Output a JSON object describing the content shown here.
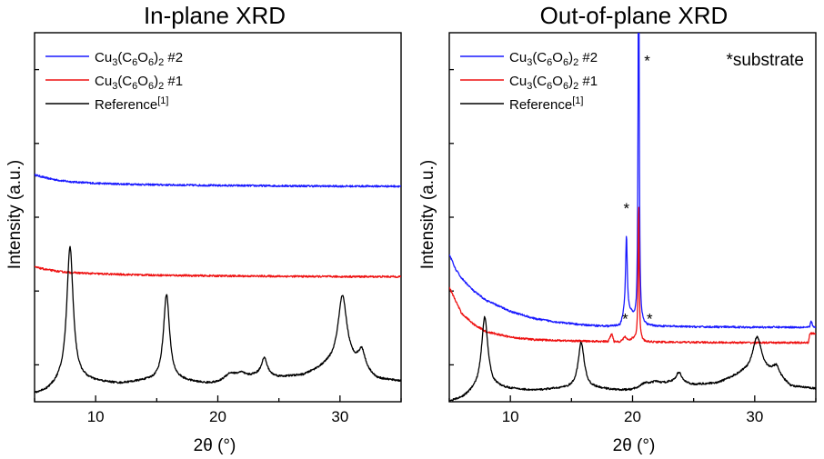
{
  "figure": {
    "colors": {
      "blue": "#1a1aff",
      "red": "#ee1111",
      "black": "#000000"
    }
  },
  "chart_data": [
    {
      "type": "line",
      "title": "In-plane XRD",
      "xlabel": "2θ (°)",
      "ylabel": "Intensity (a.u.)",
      "xlim": [
        5,
        35
      ],
      "ylim": [
        0,
        10
      ],
      "xticks": [
        10,
        20,
        30
      ],
      "y_tick_labels_shown": false,
      "legend_position": "top-left",
      "legend": [
        {
          "base": "Cu",
          "sub1": "3",
          "mid1": "(C",
          "sub2": "6",
          "mid2": "O",
          "sub3": "6",
          "mid3": ")",
          "sub4": "2",
          "tail": " #2",
          "sup": "",
          "color": "#1a1aff"
        },
        {
          "base": "Cu",
          "sub1": "3",
          "mid1": "(C",
          "sub2": "6",
          "mid2": "O",
          "sub3": "6",
          "mid3": ")",
          "sub4": "2",
          "tail": " #1",
          "sup": "",
          "color": "#ee1111"
        },
        {
          "base": "Reference",
          "sub1": "",
          "mid1": "",
          "sub2": "",
          "mid2": "",
          "sub3": "",
          "mid3": "",
          "sub4": "",
          "tail": "",
          "sup": "[1]",
          "color": "#000000"
        }
      ],
      "series": [
        {
          "name": "Cu3(C6O6)2 #2",
          "color": "#1a1aff",
          "points": [
            [
              5,
              6.15
            ],
            [
              6,
              6.06
            ],
            [
              7,
              6.0
            ],
            [
              8,
              5.96
            ],
            [
              10,
              5.92
            ],
            [
              12,
              5.9
            ],
            [
              15,
              5.88
            ],
            [
              20,
              5.86
            ],
            [
              25,
              5.85
            ],
            [
              30,
              5.84
            ],
            [
              35,
              5.84
            ]
          ],
          "peaks": []
        },
        {
          "name": "Cu3(C6O6)2 #1",
          "color": "#ee1111",
          "points": [
            [
              5,
              3.65
            ],
            [
              6,
              3.58
            ],
            [
              7,
              3.53
            ],
            [
              8,
              3.5
            ],
            [
              10,
              3.47
            ],
            [
              12,
              3.45
            ],
            [
              15,
              3.43
            ],
            [
              20,
              3.41
            ],
            [
              25,
              3.4
            ],
            [
              30,
              3.39
            ],
            [
              35,
              3.39
            ]
          ],
          "peaks": []
        },
        {
          "name": "Reference[1]",
          "color": "#000000",
          "points": [
            [
              5,
              0.2
            ],
            [
              6,
              0.28
            ],
            [
              7,
              0.45
            ],
            [
              9,
              0.55
            ],
            [
              12,
              0.48
            ],
            [
              14,
              0.55
            ],
            [
              17,
              0.55
            ],
            [
              19,
              0.48
            ],
            [
              20,
              0.48
            ],
            [
              23,
              0.68
            ],
            [
              25,
              0.65
            ],
            [
              27,
              0.7
            ],
            [
              29,
              0.95
            ],
            [
              31.5,
              0.95
            ],
            [
              33,
              0.6
            ],
            [
              35,
              0.55
            ]
          ],
          "peaks": [
            [
              7.9,
              3.7,
              0.32
            ],
            [
              15.8,
              2.35,
              0.3
            ],
            [
              21.0,
              0.2,
              0.6
            ],
            [
              21.9,
              0.12,
              0.4
            ],
            [
              23.8,
              0.5,
              0.3
            ],
            [
              30.2,
              1.9,
              0.45
            ],
            [
              31.8,
              0.45,
              0.3
            ]
          ]
        }
      ]
    },
    {
      "type": "line",
      "title": "Out-of-plane XRD",
      "xlabel": "2θ (°)",
      "ylabel": "Intensity (a.u.)",
      "xlim": [
        5,
        35
      ],
      "ylim": [
        0,
        10
      ],
      "xticks": [
        10,
        20,
        30
      ],
      "y_tick_labels_shown": false,
      "legend_position": "top-left",
      "annotation_text": "*substrate",
      "legend": [
        {
          "base": "Cu",
          "sub1": "3",
          "mid1": "(C",
          "sub2": "6",
          "mid2": "O",
          "sub3": "6",
          "mid3": ")",
          "sub4": "2",
          "tail": " #2",
          "sup": "",
          "color": "#1a1aff"
        },
        {
          "base": "Cu",
          "sub1": "3",
          "mid1": "(C",
          "sub2": "6",
          "mid2": "O",
          "sub3": "6",
          "mid3": ")",
          "sub4": "2",
          "tail": " #1",
          "sup": "",
          "color": "#ee1111"
        },
        {
          "base": "Reference",
          "sub1": "",
          "mid1": "",
          "sub2": "",
          "mid2": "",
          "sub3": "",
          "mid3": "",
          "sub4": "",
          "tail": "",
          "sup": "[1]",
          "color": "#000000"
        }
      ],
      "asterisks": [
        {
          "label": "*",
          "x": 19.5,
          "y": 5.1
        },
        {
          "label": "*",
          "x": 21.2,
          "y": 9.1
        },
        {
          "label": "*",
          "x": 19.4,
          "y": 2.1
        },
        {
          "label": "*",
          "x": 21.4,
          "y": 2.1
        }
      ],
      "series": [
        {
          "name": "Cu3(C6O6)2 #2",
          "color": "#1a1aff",
          "points": [
            [
              5,
              4.0
            ],
            [
              5.5,
              3.6
            ],
            [
              6,
              3.35
            ],
            [
              7,
              3.0
            ],
            [
              8,
              2.75
            ],
            [
              10,
              2.45
            ],
            [
              12,
              2.25
            ],
            [
              14,
              2.15
            ],
            [
              16,
              2.08
            ],
            [
              18,
              2.04
            ],
            [
              19,
              2.05
            ],
            [
              19.4,
              2.4
            ],
            [
              19.9,
              2.35
            ],
            [
              20.3,
              2.1
            ],
            [
              21,
              2.05
            ],
            [
              25,
              2.03
            ],
            [
              30,
              2.02
            ],
            [
              34.5,
              2.02
            ],
            [
              34.6,
              2.2
            ],
            [
              34.8,
              2.02
            ],
            [
              35,
              2.02
            ]
          ],
          "peaks": [
            [
              19.5,
              2.1,
              0.08
            ],
            [
              20.5,
              12.0,
              0.05
            ]
          ]
        },
        {
          "name": "Cu3(C6O6)2 #1",
          "color": "#ee1111",
          "points": [
            [
              5,
              3.1
            ],
            [
              5.5,
              2.75
            ],
            [
              6,
              2.4
            ],
            [
              7,
              2.1
            ],
            [
              8,
              1.9
            ],
            [
              10,
              1.75
            ],
            [
              12,
              1.68
            ],
            [
              15,
              1.65
            ],
            [
              18,
              1.63
            ],
            [
              18.3,
              1.85
            ],
            [
              18.5,
              1.63
            ],
            [
              19,
              1.63
            ],
            [
              19.4,
              1.75
            ],
            [
              19.7,
              1.65
            ],
            [
              20,
              1.7
            ],
            [
              20.4,
              1.7
            ],
            [
              21,
              1.62
            ],
            [
              25,
              1.61
            ],
            [
              30,
              1.6
            ],
            [
              34.4,
              1.6
            ],
            [
              34.5,
              1.85
            ],
            [
              35,
              1.85
            ]
          ],
          "peaks": [
            [
              20.5,
              3.7,
              0.05
            ]
          ]
        },
        {
          "name": "Reference[1]",
          "color": "#000000",
          "points": [
            [
              5,
              0.0
            ],
            [
              6,
              0.08
            ],
            [
              7,
              0.25
            ],
            [
              9,
              0.35
            ],
            [
              12,
              0.3
            ],
            [
              14,
              0.35
            ],
            [
              17,
              0.35
            ],
            [
              19,
              0.3
            ],
            [
              20,
              0.3
            ],
            [
              23,
              0.5
            ],
            [
              25,
              0.45
            ],
            [
              27,
              0.5
            ],
            [
              29,
              0.75
            ],
            [
              31.5,
              0.75
            ],
            [
              33,
              0.4
            ],
            [
              35,
              0.35
            ]
          ],
          "peaks": [
            [
              7.9,
              2.0,
              0.32
            ],
            [
              15.8,
              1.25,
              0.3
            ],
            [
              21.0,
              0.12,
              0.6
            ],
            [
              21.9,
              0.08,
              0.4
            ],
            [
              23.8,
              0.3,
              0.3
            ],
            [
              30.2,
              1.0,
              0.45
            ],
            [
              31.8,
              0.25,
              0.3
            ]
          ]
        }
      ]
    }
  ]
}
